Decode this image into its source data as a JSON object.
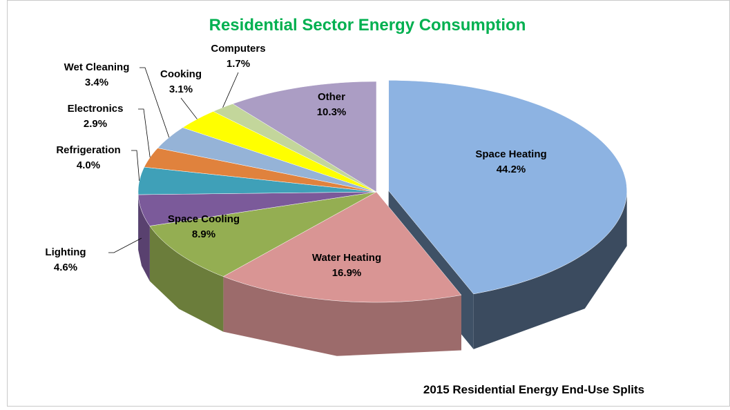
{
  "chart_data": {
    "type": "pie3d",
    "title": "Residential Sector Energy Consumption",
    "subtitle": "2015 Residential Energy End-Use Splits",
    "categories": [
      "Space Heating",
      "Water Heating",
      "Space Cooling",
      "Lighting",
      "Refrigeration",
      "Electronics",
      "Wet Cleaning",
      "Cooking",
      "Computers",
      "Other"
    ],
    "values": [
      44.2,
      16.9,
      8.9,
      4.6,
      4.0,
      2.9,
      3.4,
      3.1,
      1.7,
      10.3
    ],
    "value_labels": [
      "44.2%",
      "16.9%",
      "8.9%",
      "4.6%",
      "4.0%",
      "2.9%",
      "3.4%",
      "3.1%",
      "1.7%",
      "10.3%"
    ],
    "colors": [
      "#8db3e2",
      "#d99594",
      "#94ae52",
      "#7b5a9a",
      "#3fa0b8",
      "#e0823d",
      "#95b3d7",
      "#ffff00",
      "#c3d69b",
      "#ab9dc4"
    ],
    "exploded": [
      0
    ]
  }
}
